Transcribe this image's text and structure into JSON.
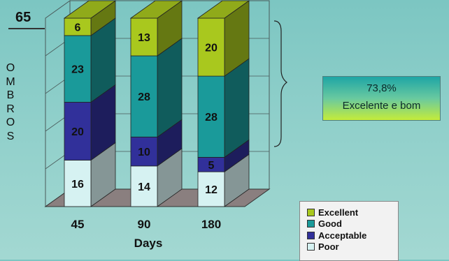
{
  "header": {
    "top_number": "65",
    "side_label": "OMBROS"
  },
  "summary": {
    "percent": "73,8%",
    "description": "Excelente e bom"
  },
  "colors": {
    "excellent": "#a9c81e",
    "good": "#1a9a9a",
    "acceptable": "#31309a",
    "poor": "#d6f2f2",
    "summary_box_top": "#1ea5a5",
    "summary_box_bottom": "#c4ec3a"
  },
  "chart_data": {
    "type": "bar",
    "stacked": true,
    "three_d": true,
    "categories": [
      "45",
      "90",
      "180"
    ],
    "xlabel": "Days",
    "ylabel": "",
    "ylim": [
      0,
      65
    ],
    "grid": true,
    "legend_position": "bottom-right",
    "series": [
      {
        "name": "Poor",
        "values": [
          16,
          14,
          12
        ]
      },
      {
        "name": "Acceptable",
        "values": [
          20,
          10,
          5
        ]
      },
      {
        "name": "Good",
        "values": [
          23,
          28,
          28
        ]
      },
      {
        "name": "Excellent",
        "values": [
          6,
          13,
          20
        ]
      }
    ],
    "annotation": {
      "bracket_on_categories": [
        "180"
      ]
    }
  }
}
